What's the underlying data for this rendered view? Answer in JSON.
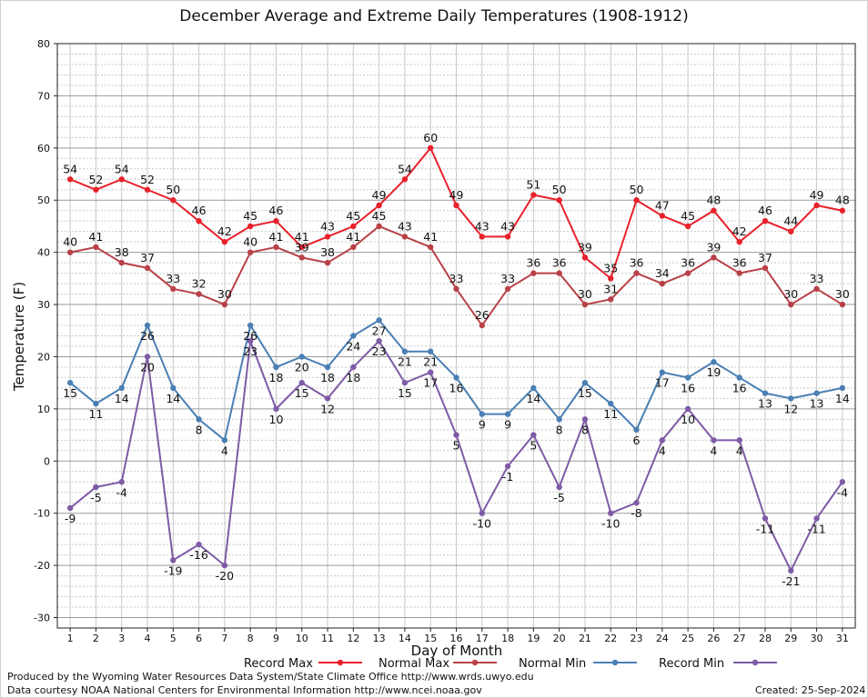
{
  "title": "December Average and Extreme Daily Temperatures (1908-1912)",
  "footer": {
    "produced_by": "Produced by the Wyoming Water Resources Data System/State Climate Office http://www.wrds.uwyo.edu",
    "data_courtesy": "Data courtesy NOAA National Centers for Environmental Information http://www.ncei.noaa.gov",
    "created": "Created: 25-Sep-2024"
  },
  "chart_data": {
    "type": "line",
    "title": "December Average and Extreme Daily Temperatures (1908-1912)",
    "xlabel": "Day of Month",
    "ylabel": "Temperature (F)",
    "x": [
      1,
      2,
      3,
      4,
      5,
      6,
      7,
      8,
      9,
      10,
      11,
      12,
      13,
      14,
      15,
      16,
      17,
      18,
      19,
      20,
      21,
      22,
      23,
      24,
      25,
      26,
      27,
      28,
      29,
      30,
      31
    ],
    "xlim": [
      0.5,
      31.5
    ],
    "ylim": [
      -32,
      80
    ],
    "yticks": [
      -30,
      -20,
      -10,
      0,
      10,
      20,
      30,
      40,
      50,
      60,
      70,
      80
    ],
    "grid": true,
    "legend_position": "bottom",
    "series": [
      {
        "name": "Record Max",
        "color": "#e8212b",
        "values": [
          54,
          52,
          54,
          52,
          50,
          46,
          42,
          45,
          46,
          41,
          43,
          45,
          49,
          54,
          60,
          49,
          43,
          43,
          51,
          50,
          39,
          35,
          50,
          47,
          45,
          48,
          42,
          46,
          44,
          49,
          48
        ]
      },
      {
        "name": "Normal Max",
        "color": "#b84148",
        "values": [
          40,
          41,
          38,
          37,
          33,
          32,
          30,
          40,
          41,
          39,
          38,
          41,
          45,
          43,
          41,
          33,
          26,
          33,
          36,
          36,
          30,
          31,
          36,
          34,
          36,
          39,
          36,
          37,
          30,
          33,
          30
        ]
      },
      {
        "name": "Normal Min",
        "color": "#4a7fb4",
        "values": [
          15,
          11,
          14,
          26,
          14,
          8,
          4,
          26,
          18,
          20,
          18,
          24,
          27,
          21,
          21,
          16,
          9,
          9,
          14,
          8,
          15,
          11,
          6,
          17,
          16,
          19,
          16,
          13,
          12,
          13,
          14
        ]
      },
      {
        "name": "Record Min",
        "color": "#7e5ba6",
        "values": [
          -9,
          -5,
          -4,
          20,
          -19,
          -16,
          -20,
          23,
          10,
          15,
          12,
          18,
          23,
          15,
          17,
          5,
          -10,
          -1,
          5,
          -5,
          8,
          -10,
          -8,
          4,
          10,
          4,
          4,
          -11,
          -21,
          -11,
          -4
        ]
      }
    ]
  }
}
